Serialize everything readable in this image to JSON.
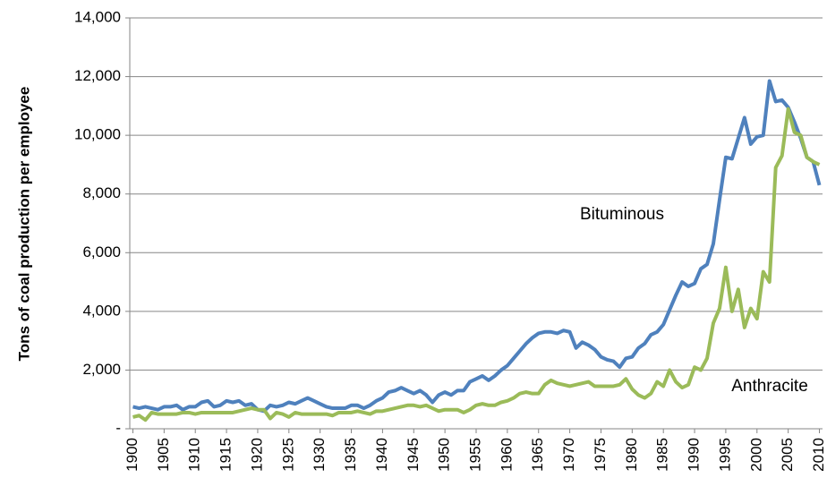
{
  "chart_data": {
    "type": "line",
    "y_label": "Tons of coal production per employee",
    "annotations": [
      "Bituminous",
      "Anthracite"
    ],
    "x": [
      1900,
      1901,
      1902,
      1903,
      1904,
      1905,
      1906,
      1907,
      1908,
      1909,
      1910,
      1911,
      1912,
      1913,
      1914,
      1915,
      1916,
      1917,
      1918,
      1919,
      1920,
      1921,
      1922,
      1923,
      1924,
      1925,
      1926,
      1927,
      1928,
      1929,
      1930,
      1931,
      1932,
      1933,
      1934,
      1935,
      1936,
      1937,
      1938,
      1939,
      1940,
      1941,
      1942,
      1943,
      1944,
      1945,
      1946,
      1947,
      1948,
      1949,
      1950,
      1951,
      1952,
      1953,
      1954,
      1955,
      1956,
      1957,
      1958,
      1959,
      1960,
      1961,
      1962,
      1963,
      1964,
      1965,
      1966,
      1967,
      1968,
      1969,
      1970,
      1971,
      1972,
      1973,
      1974,
      1975,
      1976,
      1977,
      1978,
      1979,
      1980,
      1981,
      1982,
      1983,
      1984,
      1985,
      1986,
      1987,
      1988,
      1989,
      1990,
      1991,
      1992,
      1993,
      1994,
      1995,
      1996,
      1997,
      1998,
      1999,
      2000,
      2001,
      2002,
      2003,
      2004,
      2005,
      2006,
      2007,
      2008,
      2009,
      2010
    ],
    "xlim": [
      1899.5,
      2010.5
    ],
    "xticks": [
      1900,
      1905,
      1910,
      1915,
      1920,
      1925,
      1930,
      1935,
      1940,
      1945,
      1950,
      1955,
      1960,
      1965,
      1970,
      1975,
      1980,
      1985,
      1990,
      1995,
      2000,
      2005,
      2010
    ],
    "ylim": [
      0,
      14000
    ],
    "yticks": [
      {
        "value": 0,
        "label": "-"
      },
      {
        "value": 2000,
        "label": "2,000"
      },
      {
        "value": 4000,
        "label": "4,000"
      },
      {
        "value": 6000,
        "label": "6,000"
      },
      {
        "value": 8000,
        "label": "8,000"
      },
      {
        "value": 10000,
        "label": "10,000"
      },
      {
        "value": 12000,
        "label": "12,000"
      },
      {
        "value": 14000,
        "label": "14,000"
      }
    ],
    "grid": true,
    "series": [
      {
        "name": "Bituminous",
        "color": "#4f81bd",
        "values": [
          750,
          700,
          750,
          700,
          650,
          750,
          750,
          800,
          650,
          750,
          750,
          900,
          950,
          750,
          800,
          950,
          900,
          950,
          800,
          850,
          650,
          600,
          800,
          750,
          800,
          900,
          850,
          950,
          1050,
          950,
          850,
          750,
          700,
          700,
          700,
          800,
          800,
          700,
          800,
          950,
          1050,
          1250,
          1300,
          1400,
          1300,
          1200,
          1300,
          1150,
          900,
          1150,
          1250,
          1150,
          1300,
          1300,
          1600,
          1700,
          1800,
          1650,
          1800,
          2000,
          2150,
          2400,
          2650,
          2900,
          3100,
          3250,
          3300,
          3300,
          3250,
          3350,
          3300,
          2750,
          2950,
          2850,
          2700,
          2450,
          2350,
          2300,
          2100,
          2400,
          2450,
          2750,
          2900,
          3200,
          3300,
          3550,
          4050,
          4550,
          5000,
          4850,
          4950,
          5450,
          5600,
          6300,
          7800,
          9250,
          9200,
          9900,
          10600,
          9700,
          9950,
          10000,
          11850,
          11150,
          11200,
          10950,
          10450,
          9900,
          9250,
          9100,
          8300
        ]
      },
      {
        "name": "Anthracite",
        "color": "#9bbb59",
        "values": [
          400,
          450,
          300,
          550,
          500,
          500,
          500,
          500,
          550,
          550,
          500,
          550,
          550,
          550,
          550,
          550,
          550,
          600,
          650,
          700,
          650,
          650,
          350,
          550,
          500,
          400,
          550,
          500,
          500,
          500,
          500,
          500,
          450,
          550,
          550,
          550,
          600,
          550,
          500,
          600,
          600,
          650,
          700,
          750,
          800,
          800,
          750,
          800,
          700,
          600,
          650,
          650,
          650,
          550,
          650,
          800,
          850,
          800,
          800,
          900,
          950,
          1050,
          1200,
          1250,
          1200,
          1200,
          1500,
          1650,
          1550,
          1500,
          1450,
          1500,
          1550,
          1600,
          1450,
          1450,
          1450,
          1450,
          1500,
          1700,
          1350,
          1150,
          1050,
          1200,
          1600,
          1450,
          2000,
          1600,
          1400,
          1500,
          2100,
          2000,
          2400,
          3600,
          4100,
          5500,
          4000,
          4750,
          3450,
          4100,
          3750,
          5350,
          5000,
          8900,
          9300,
          10900,
          10100,
          10000,
          9250,
          9100,
          9000
        ]
      }
    ]
  }
}
